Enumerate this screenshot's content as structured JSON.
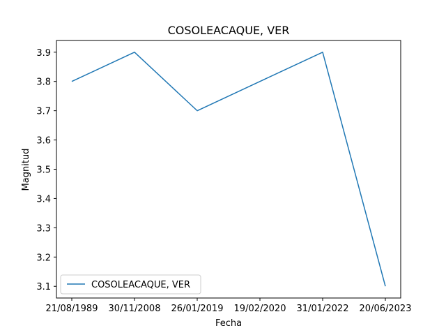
{
  "chart_data": {
    "type": "line",
    "title": "COSOLEACAQUE, VER",
    "xlabel": "Fecha",
    "ylabel": "Magnitud",
    "categories": [
      "21/08/1989",
      "30/11/2008",
      "26/01/2019",
      "19/02/2020",
      "31/01/2022",
      "20/06/2023"
    ],
    "series": [
      {
        "name": "COSOLEACAQUE, VER",
        "values": [
          3.8,
          3.9,
          3.7,
          3.8,
          3.9,
          3.1
        ],
        "color": "#1f77b4"
      }
    ],
    "ylim": [
      3.06,
      3.94
    ],
    "yticks": [
      3.1,
      3.2,
      3.3,
      3.4,
      3.5,
      3.6,
      3.7,
      3.8,
      3.9
    ],
    "ytick_labels": [
      "3.1",
      "3.2",
      "3.3",
      "3.4",
      "3.5",
      "3.6",
      "3.7",
      "3.8",
      "3.9"
    ],
    "grid": false,
    "legend_position": "lower-left"
  }
}
